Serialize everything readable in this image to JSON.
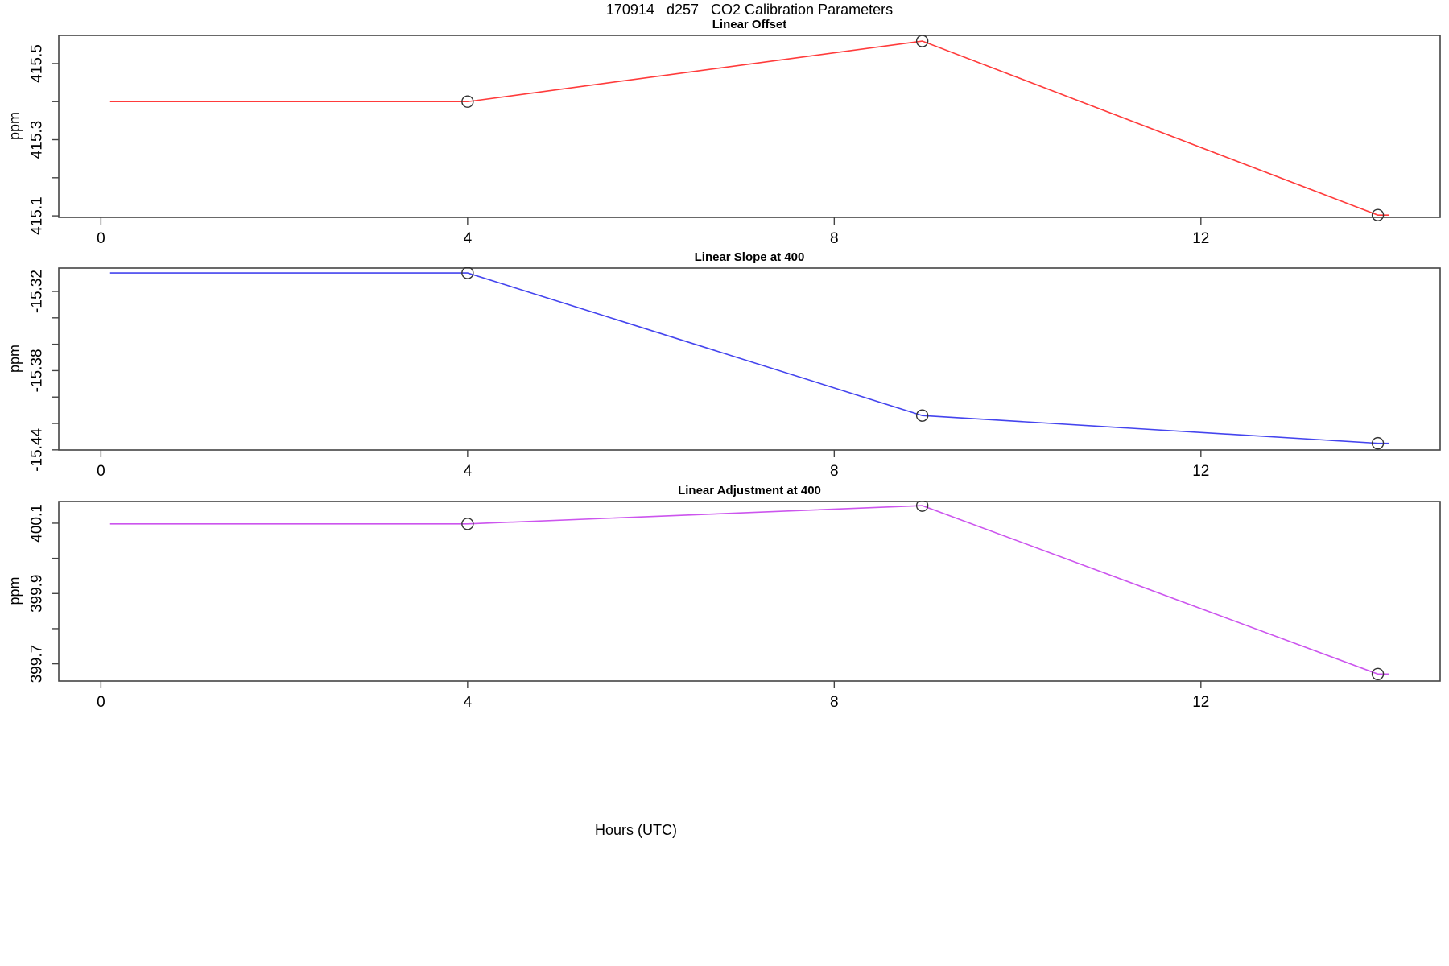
{
  "main_title": "170914   d257   CO2 Calibration Parameters",
  "x_axis_title": "Hours (UTC)",
  "marker_style": {
    "shape": "open-circle",
    "color": "#333333"
  },
  "axis_color": "#444444",
  "chart_data": [
    {
      "type": "line",
      "title": "Linear Offset",
      "ylabel": "ppm",
      "color": "#ff3b3b",
      "x": [
        0.1,
        4,
        8.96,
        13.93,
        14.05
      ],
      "y": [
        415.4,
        415.4,
        415.559,
        415.102,
        415.102
      ],
      "markers": [
        [
          4,
          415.4
        ],
        [
          8.96,
          415.559
        ],
        [
          13.93,
          415.102
        ]
      ],
      "xlim": [
        -0.46,
        14.61
      ],
      "ylim": [
        415.096,
        415.576
      ],
      "xticks": [
        {
          "value": 0,
          "label": "0"
        },
        {
          "value": 4,
          "label": "4"
        },
        {
          "value": 8,
          "label": "8"
        },
        {
          "value": 12,
          "label": "12"
        }
      ],
      "yticks": [
        {
          "value": 415.1,
          "label": "415.1"
        },
        {
          "value": 415.2,
          "label": ""
        },
        {
          "value": 415.3,
          "label": "415.3"
        },
        {
          "value": 415.4,
          "label": ""
        },
        {
          "value": 415.5,
          "label": "415.5"
        }
      ]
    },
    {
      "type": "line",
      "title": "Linear Slope at 400",
      "ylabel": "ppm",
      "color": "#4444ee",
      "x": [
        0.1,
        4,
        8.96,
        13.93,
        14.05
      ],
      "y": [
        -15.306,
        -15.306,
        -15.414,
        -15.435,
        -15.435
      ],
      "markers": [
        [
          4,
          -15.306
        ],
        [
          8.96,
          -15.414
        ],
        [
          13.93,
          -15.435
        ]
      ],
      "xlim": [
        -0.46,
        14.61
      ],
      "ylim": [
        -15.4401,
        -15.3017
      ],
      "xticks": [
        {
          "value": 0,
          "label": "0"
        },
        {
          "value": 4,
          "label": "4"
        },
        {
          "value": 8,
          "label": "8"
        },
        {
          "value": 12,
          "label": "12"
        }
      ],
      "yticks": [
        {
          "value": -15.44,
          "label": "-15.44"
        },
        {
          "value": -15.42,
          "label": ""
        },
        {
          "value": -15.4,
          "label": ""
        },
        {
          "value": -15.38,
          "label": "-15.38"
        },
        {
          "value": -15.36,
          "label": ""
        },
        {
          "value": -15.34,
          "label": ""
        },
        {
          "value": -15.32,
          "label": "-15.32"
        }
      ]
    },
    {
      "type": "line",
      "title": "Linear Adjustment at 400",
      "ylabel": "ppm",
      "color": "#cc55ee",
      "x": [
        0.1,
        4,
        8.96,
        13.93,
        14.05
      ],
      "y": [
        400.098,
        400.098,
        400.15,
        399.671,
        399.671
      ],
      "markers": [
        [
          4,
          400.098
        ],
        [
          8.96,
          400.15
        ],
        [
          13.93,
          399.671
        ]
      ],
      "xlim": [
        -0.46,
        14.61
      ],
      "ylim": [
        399.651,
        400.164
      ],
      "xticks": [
        {
          "value": 0,
          "label": "0"
        },
        {
          "value": 4,
          "label": "4"
        },
        {
          "value": 8,
          "label": "8"
        },
        {
          "value": 12,
          "label": "12"
        }
      ],
      "yticks": [
        {
          "value": 399.7,
          "label": "399.7"
        },
        {
          "value": 399.8,
          "label": ""
        },
        {
          "value": 399.9,
          "label": "399.9"
        },
        {
          "value": 400.0,
          "label": ""
        },
        {
          "value": 400.1,
          "label": "400.1"
        }
      ]
    }
  ]
}
